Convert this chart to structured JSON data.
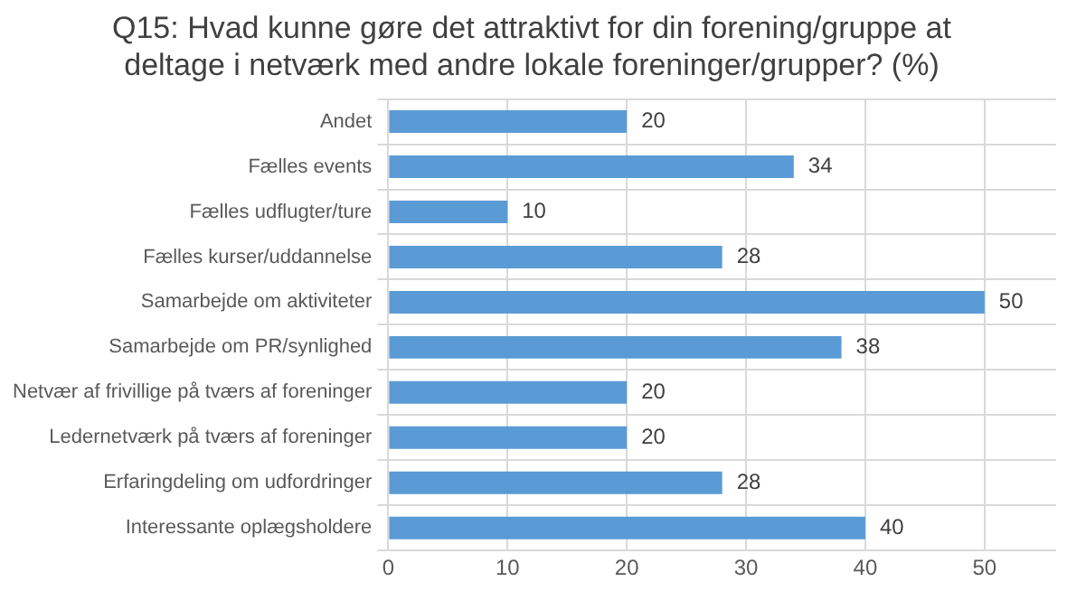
{
  "chart_data": {
    "type": "bar",
    "orientation": "horizontal",
    "title": "Q15: Hvad kunne gøre det attraktivt for din forening/gruppe at deltage i netværk med andre lokale foreninger/grupper? (%)",
    "categories": [
      "Andet",
      "Fælles events",
      "Fælles udflugter/ture",
      "Fælles kurser/uddannelse",
      "Samarbejde om aktiviteter",
      "Samarbejde om PR/synlighed",
      "Netvær af frivillige på tværs af foreninger",
      "Ledernetværk på tværs af foreninger",
      "Erfaringdeling om udfordringer",
      "Interessante oplægsholdere"
    ],
    "values": [
      20,
      34,
      10,
      28,
      50,
      38,
      20,
      20,
      28,
      40
    ],
    "color": "#5b9bd5",
    "xlim": [
      0,
      56
    ],
    "xticks": [
      0,
      10,
      20,
      30,
      40,
      50
    ],
    "grid": true,
    "data_labels": true
  }
}
